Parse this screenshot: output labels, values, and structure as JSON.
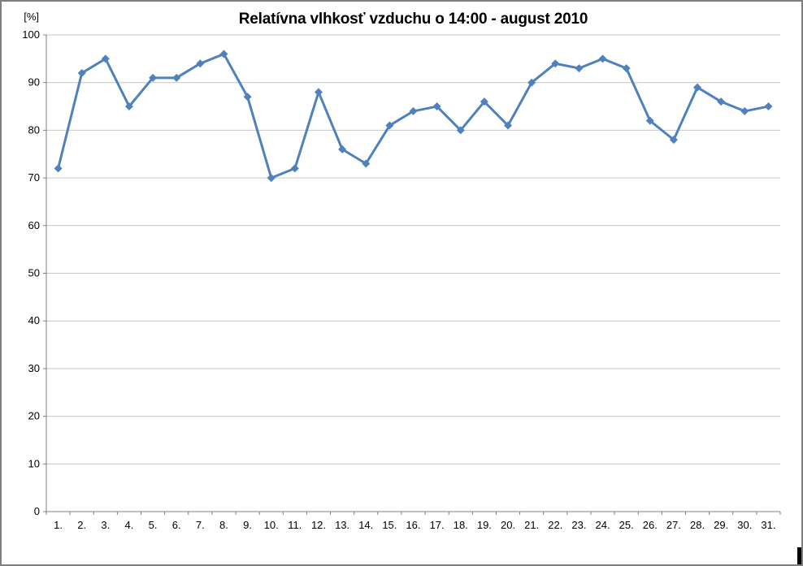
{
  "window": {
    "background": "#ffffff",
    "border_color": "#7f7f7f"
  },
  "chart_data": {
    "type": "line",
    "title": "Relatívna vlhkosť vzduchu o 14:00 - august 2010",
    "ylabel": "[%]",
    "xlabel": "",
    "categories": [
      "1.",
      "2.",
      "3.",
      "4.",
      "5.",
      "6.",
      "7.",
      "8.",
      "9.",
      "10.",
      "11.",
      "12.",
      "13.",
      "14.",
      "15.",
      "16.",
      "17.",
      "18.",
      "19.",
      "20.",
      "21.",
      "22.",
      "23.",
      "24.",
      "25.",
      "26.",
      "27.",
      "28.",
      "29.",
      "30.",
      "31."
    ],
    "values": [
      72,
      92,
      95,
      85,
      91,
      91,
      94,
      96,
      87,
      70,
      72,
      88,
      76,
      73,
      81,
      84,
      85,
      80,
      86,
      81,
      90,
      94,
      93,
      95,
      93,
      82,
      78,
      89,
      86,
      84,
      85
    ],
    "ylim": [
      0,
      100
    ],
    "ytick_step": 10,
    "grid": "horizontal",
    "legend": "none",
    "marker": "diamond",
    "colors": {
      "line": "#4F81BD",
      "gridline": "#c6c6c6",
      "axis": "#808080",
      "tick_text": "#000000"
    }
  },
  "artifacts": {
    "cursor_block_color": "#000000"
  }
}
